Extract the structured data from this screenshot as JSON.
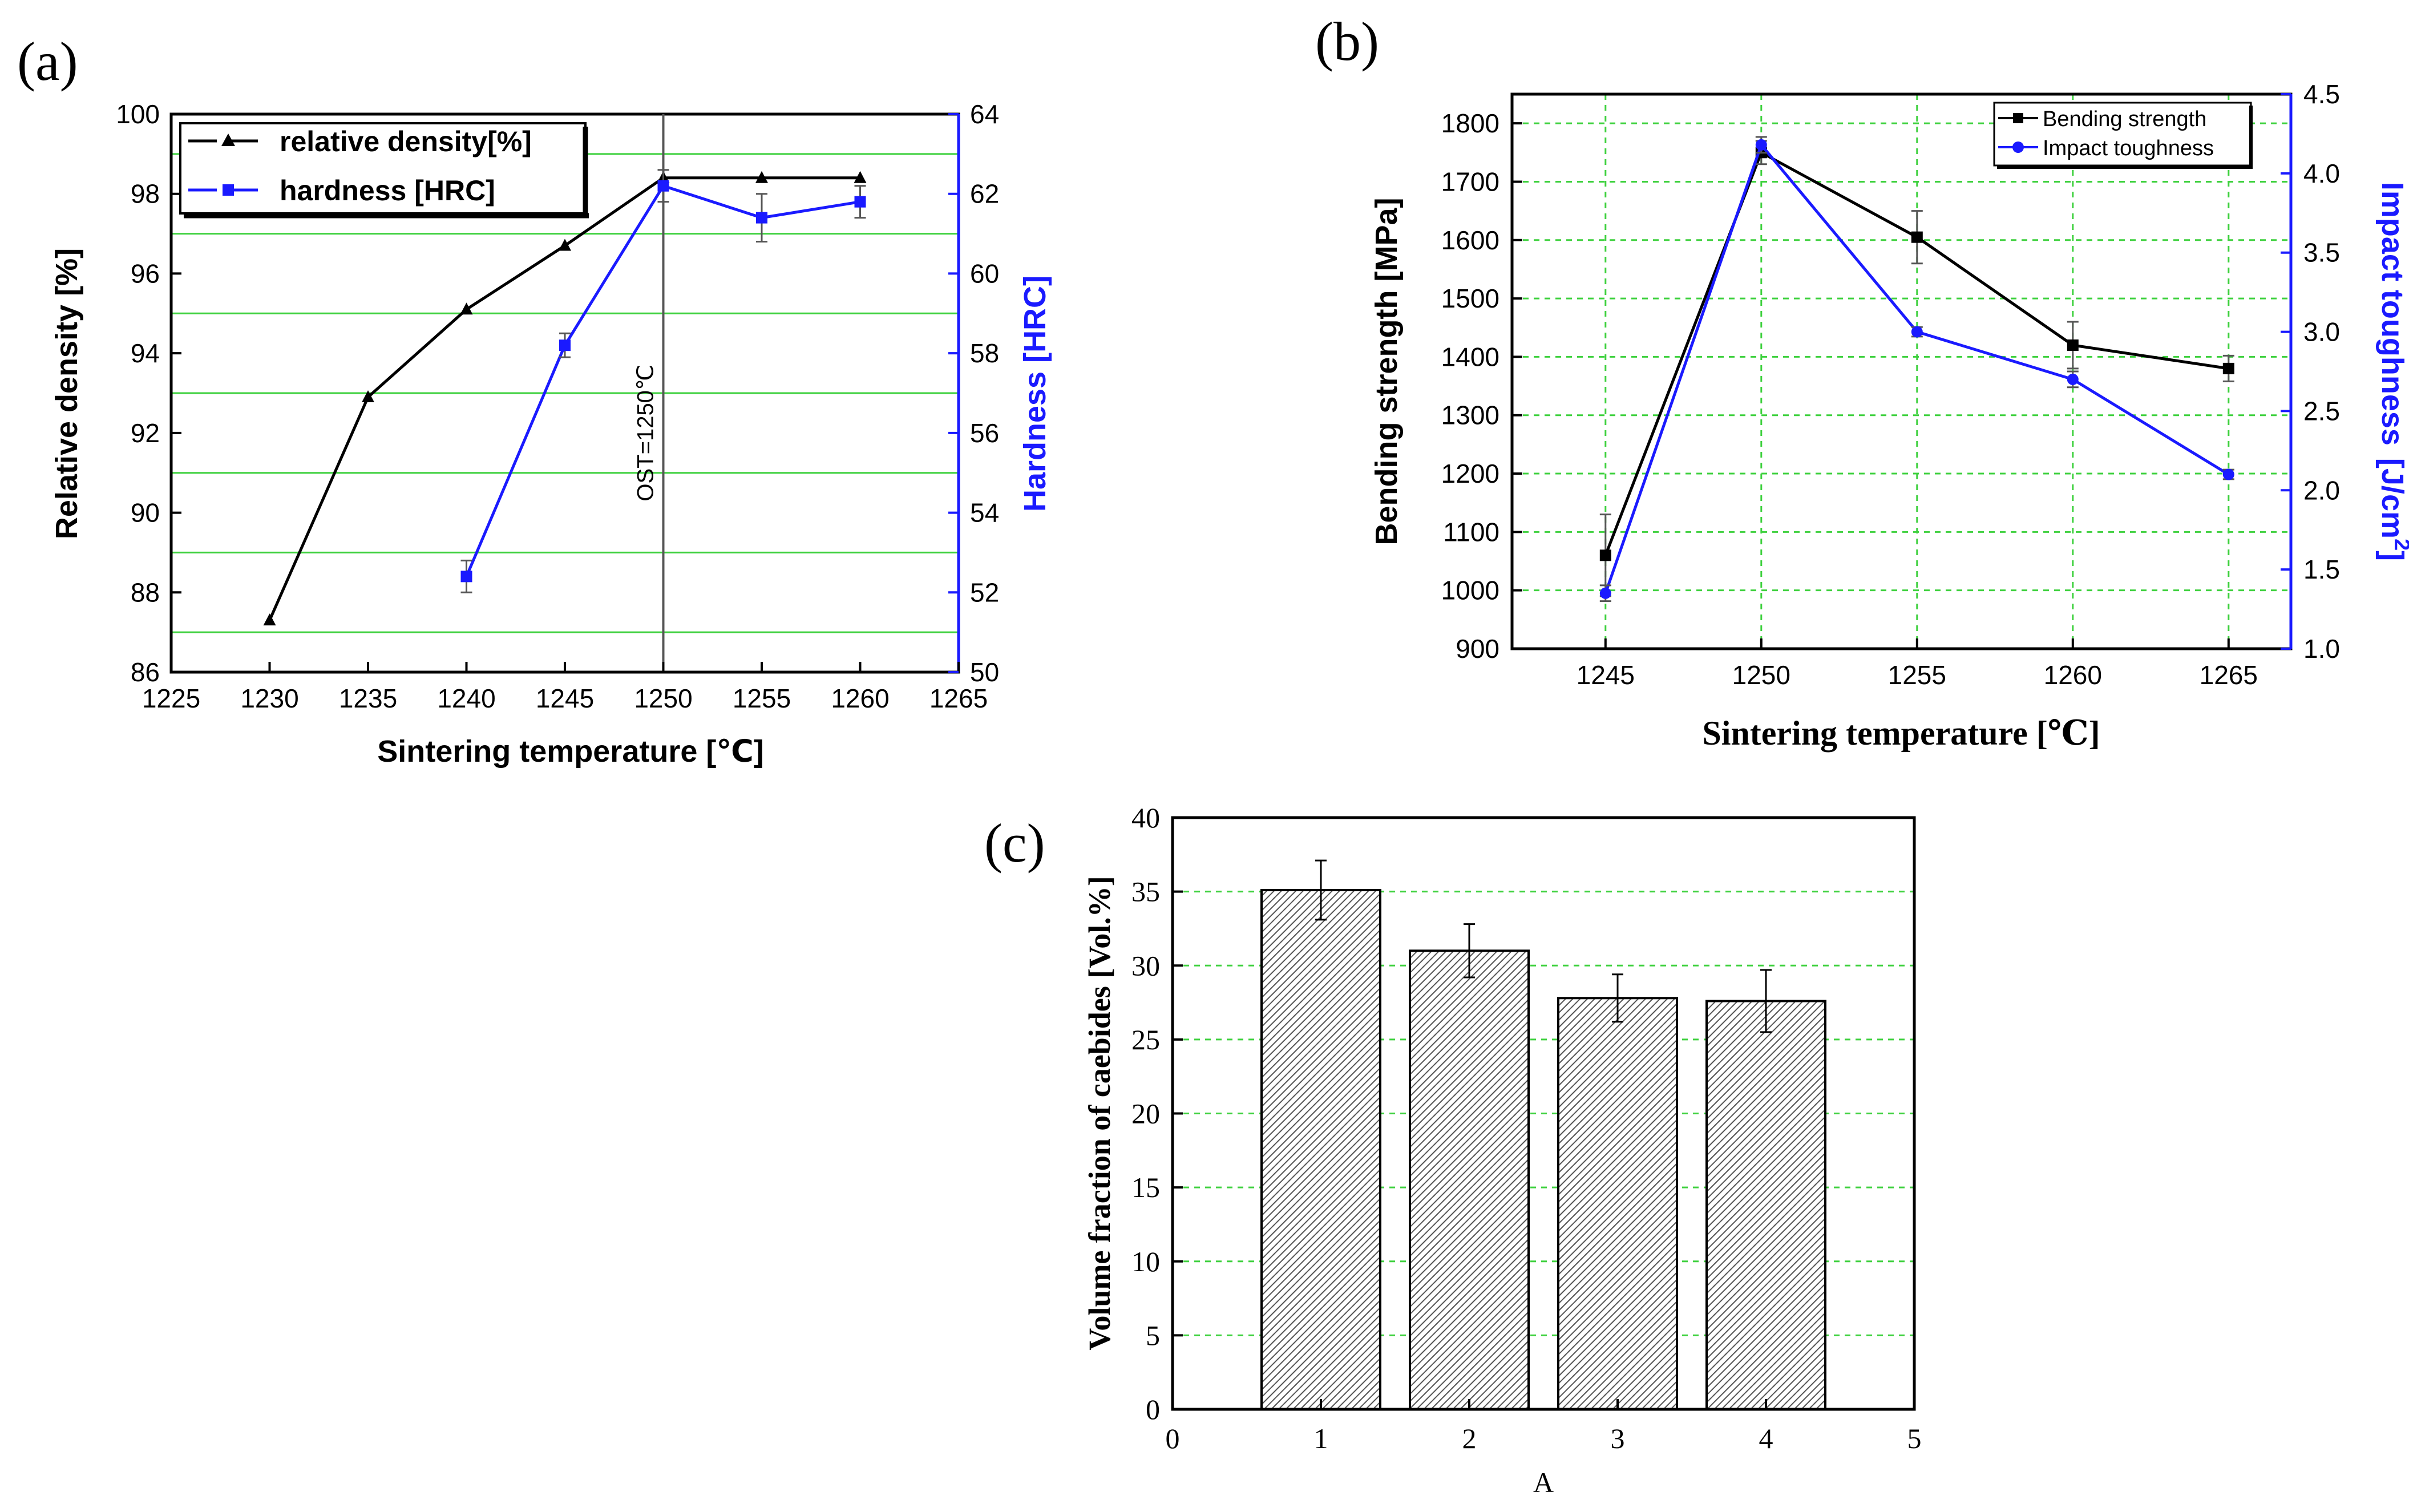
{
  "chart_data": [
    {
      "panel_label": "(a)",
      "type": "line",
      "xlabel": "Sintering temperature [℃]",
      "ylabel_left": "Relative density [%]",
      "ylabel_right": "Hardness [HRC]",
      "xlim": [
        1225,
        1265
      ],
      "xticks": [
        1225,
        1230,
        1235,
        1240,
        1245,
        1250,
        1255,
        1260,
        1265
      ],
      "ylim_left": [
        86,
        100
      ],
      "yticks_left": [
        86,
        88,
        90,
        92,
        94,
        96,
        98,
        100
      ],
      "ylim_right": [
        50,
        64
      ],
      "yticks_right": [
        50,
        52,
        54,
        56,
        58,
        60,
        62,
        64
      ],
      "annotation": "OST=1250℃",
      "annotation_x": 1250,
      "series": [
        {
          "name": "relative density[%]",
          "axis": "left",
          "color": "#000000",
          "marker": "triangle",
          "x": [
            1230,
            1235,
            1240,
            1245,
            1250,
            1255,
            1260
          ],
          "values": [
            87.3,
            92.9,
            95.1,
            96.7,
            98.4,
            98.4,
            98.4
          ]
        },
        {
          "name": "hardness [HRC]",
          "axis": "right",
          "color": "#1a1aff",
          "marker": "square",
          "x": [
            1240,
            1245,
            1250,
            1255,
            1260
          ],
          "values": [
            52.4,
            58.2,
            62.2,
            61.4,
            61.8
          ],
          "errors": [
            0.4,
            0.3,
            0.4,
            0.6,
            0.4
          ]
        }
      ]
    },
    {
      "panel_label": "(b)",
      "type": "line",
      "xlabel": "Sintering temperature [℃]",
      "ylabel_left": "Bending strength [MPa]",
      "ylabel_right": "Impact toughness",
      "ylabel_right_unit": "[J/cm",
      "ylabel_right_sup": "2",
      "ylabel_right_close": "]",
      "xlim": [
        1242,
        1267
      ],
      "xticks": [
        1245,
        1250,
        1255,
        1260,
        1265
      ],
      "ylim_left": [
        900,
        1850
      ],
      "yticks_left": [
        900,
        1000,
        1100,
        1200,
        1300,
        1400,
        1500,
        1600,
        1700,
        1800
      ],
      "ylim_right": [
        1.0,
        4.5
      ],
      "yticks_right": [
        "1.0",
        "1.5",
        "2.0",
        "2.5",
        "3.0",
        "3.5",
        "4.0",
        "4.5"
      ],
      "series": [
        {
          "name": "Bending strength",
          "axis": "left",
          "color": "#000000",
          "marker": "square",
          "x": [
            1245,
            1250,
            1255,
            1260,
            1265
          ],
          "values": [
            1060,
            1750,
            1605,
            1420,
            1380
          ],
          "errors": [
            70,
            20,
            45,
            40,
            22
          ]
        },
        {
          "name": "Impact toughness",
          "axis": "right",
          "color": "#1a1aff",
          "marker": "circle",
          "x": [
            1245,
            1250,
            1255,
            1260,
            1265
          ],
          "values": [
            1.35,
            4.18,
            3.0,
            2.7,
            2.1
          ],
          "errors": [
            0.05,
            0.05,
            0.03,
            0.05,
            0.03
          ]
        }
      ]
    },
    {
      "panel_label": "(c)",
      "type": "bar",
      "xlabel": "A",
      "ylabel": "Volume fraction of caebides [Vol.%]",
      "xlim": [
        0,
        5
      ],
      "xticks": [
        0,
        1,
        2,
        3,
        4,
        5
      ],
      "ylim": [
        0,
        40
      ],
      "yticks": [
        0,
        5,
        10,
        15,
        20,
        25,
        30,
        35,
        40
      ],
      "x": [
        1,
        2,
        3,
        4
      ],
      "values": [
        35.1,
        31.0,
        27.8,
        27.6
      ],
      "errors": [
        2.0,
        1.8,
        1.6,
        2.1
      ]
    }
  ]
}
